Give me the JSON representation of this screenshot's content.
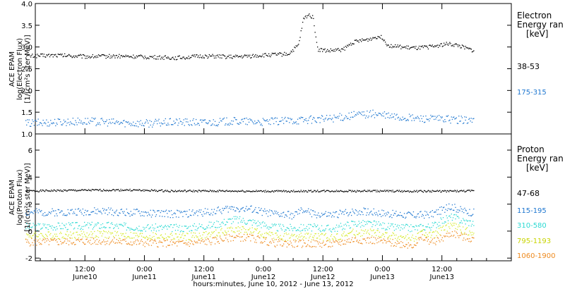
{
  "chart_data": {
    "type": "scatter",
    "xlabel": "hours:minutes, June 10, 2012 - June 13, 2012",
    "x_ticks": [
      {
        "time": "12:00",
        "day": "June10"
      },
      {
        "time": "0:00",
        "day": "June11"
      },
      {
        "time": "12:00",
        "day": "June11"
      },
      {
        "time": "0:00",
        "day": "June12"
      },
      {
        "time": "12:00",
        "day": "June12"
      },
      {
        "time": "0:00",
        "day": "June13"
      },
      {
        "time": "12:00",
        "day": "June13"
      }
    ],
    "panels": [
      {
        "name": "electron",
        "ylabel_lines": [
          "ACE EPAM",
          "log(Electron Flux)",
          "[1/(cm²s ster MeV)]"
        ],
        "ylim": [
          1.0,
          4.0
        ],
        "yticks": [
          "1.0",
          "1.5",
          "2.0",
          "2.5",
          "3.0",
          "3.5",
          "4.0"
        ],
        "legend_title": [
          "Electron",
          "Energy ran",
          "[keV]"
        ],
        "series": [
          {
            "name": "38-53",
            "color": "#000000",
            "points": [
              [
                0,
                2.8
              ],
              [
                6,
                2.82
              ],
              [
                12,
                2.79
              ],
              [
                18,
                2.8
              ],
              [
                24,
                2.78
              ],
              [
                30,
                2.76
              ],
              [
                36,
                2.8
              ],
              [
                42,
                2.78
              ],
              [
                48,
                2.82
              ],
              [
                53,
                2.85
              ],
              [
                55,
                3.05
              ],
              [
                56,
                3.65
              ],
              [
                57,
                3.75
              ],
              [
                58,
                3.7
              ],
              [
                58.5,
                3.2
              ],
              [
                59,
                2.95
              ],
              [
                61,
                2.92
              ],
              [
                64,
                2.95
              ],
              [
                66,
                3.12
              ],
              [
                69,
                3.18
              ],
              [
                71,
                3.25
              ],
              [
                72,
                3.22
              ],
              [
                73,
                3.05
              ],
              [
                76,
                3.0
              ],
              [
                79,
                2.98
              ],
              [
                82,
                3.02
              ],
              [
                85,
                3.08
              ],
              [
                87,
                3.05
              ],
              [
                89,
                2.97
              ],
              [
                90.5,
                2.92
              ]
            ]
          },
          {
            "name": "175-315",
            "color": "#1f77d0",
            "points": [
              [
                0,
                1.25
              ],
              [
                6,
                1.28
              ],
              [
                12,
                1.3
              ],
              [
                18,
                1.27
              ],
              [
                24,
                1.25
              ],
              [
                30,
                1.28
              ],
              [
                36,
                1.27
              ],
              [
                42,
                1.3
              ],
              [
                48,
                1.28
              ],
              [
                54,
                1.32
              ],
              [
                60,
                1.35
              ],
              [
                64,
                1.4
              ],
              [
                67,
                1.45
              ],
              [
                70,
                1.47
              ],
              [
                73,
                1.42
              ],
              [
                76,
                1.38
              ],
              [
                80,
                1.36
              ],
              [
                84,
                1.35
              ],
              [
                88,
                1.33
              ],
              [
                90.5,
                1.32
              ]
            ]
          }
        ]
      },
      {
        "name": "proton",
        "ylabel_lines": [
          "ACE EPAM",
          "log(Proton Flux)",
          "[1/(cm²s ster MeV)]"
        ],
        "ylim": [
          -2.2,
          7.2
        ],
        "yticks": [
          "-2",
          "0",
          "2",
          "4",
          "6"
        ],
        "legend_title": [
          "Proton",
          "Energy ran",
          "[keV]"
        ],
        "series": [
          {
            "name": "47-68",
            "color": "#000000",
            "points": [
              [
                0,
                3.0
              ],
              [
                10,
                3.05
              ],
              [
                20,
                3.08
              ],
              [
                30,
                3.0
              ],
              [
                40,
                3.0
              ],
              [
                50,
                2.98
              ],
              [
                60,
                3.0
              ],
              [
                70,
                3.0
              ],
              [
                80,
                2.98
              ],
              [
                90.5,
                3.0
              ]
            ]
          },
          {
            "name": "115-195",
            "color": "#1f77d0",
            "points": [
              [
                0,
                1.4
              ],
              [
                8,
                1.45
              ],
              [
                16,
                1.5
              ],
              [
                24,
                1.35
              ],
              [
                32,
                1.3
              ],
              [
                38,
                1.5
              ],
              [
                42,
                1.75
              ],
              [
                46,
                1.6
              ],
              [
                50,
                1.3
              ],
              [
                54,
                1.2
              ],
              [
                56,
                1.6
              ],
              [
                58,
                1.3
              ],
              [
                62,
                1.2
              ],
              [
                66,
                1.5
              ],
              [
                70,
                1.45
              ],
              [
                74,
                1.3
              ],
              [
                78,
                1.2
              ],
              [
                82,
                1.3
              ],
              [
                84,
                1.6
              ],
              [
                86,
                1.85
              ],
              [
                88,
                1.55
              ],
              [
                90.5,
                1.4
              ]
            ]
          },
          {
            "name": "310-580",
            "color": "#2bd9d2",
            "points": [
              [
                0,
                0.35
              ],
              [
                8,
                0.4
              ],
              [
                16,
                0.45
              ],
              [
                24,
                0.3
              ],
              [
                32,
                0.25
              ],
              [
                38,
                0.5
              ],
              [
                42,
                0.9
              ],
              [
                46,
                0.7
              ],
              [
                50,
                0.3
              ],
              [
                54,
                0.25
              ],
              [
                58,
                0.3
              ],
              [
                62,
                0.2
              ],
              [
                66,
                0.6
              ],
              [
                70,
                0.55
              ],
              [
                74,
                0.3
              ],
              [
                78,
                0.25
              ],
              [
                82,
                0.4
              ],
              [
                84,
                0.8
              ],
              [
                86,
                1.1
              ],
              [
                88,
                0.8
              ],
              [
                90.5,
                0.6
              ]
            ]
          },
          {
            "name": "795-1193",
            "color": "#d6ea2a",
            "points": [
              [
                0,
                -0.3
              ],
              [
                8,
                -0.25
              ],
              [
                16,
                -0.2
              ],
              [
                24,
                -0.35
              ],
              [
                32,
                -0.4
              ],
              [
                38,
                -0.2
              ],
              [
                42,
                0.2
              ],
              [
                46,
                0.0
              ],
              [
                50,
                -0.35
              ],
              [
                54,
                -0.4
              ],
              [
                58,
                -0.35
              ],
              [
                62,
                -0.45
              ],
              [
                66,
                -0.1
              ],
              [
                70,
                -0.1
              ],
              [
                74,
                -0.35
              ],
              [
                78,
                -0.5
              ],
              [
                80,
                -0.1
              ],
              [
                82,
                -0.3
              ],
              [
                84,
                0.1
              ],
              [
                86,
                0.5
              ],
              [
                88,
                0.1
              ],
              [
                90.5,
                -0.1
              ]
            ]
          },
          {
            "name": "1060-1900",
            "color": "#ee8a1e",
            "points": [
              [
                0,
                -0.8
              ],
              [
                8,
                -0.75
              ],
              [
                16,
                -0.7
              ],
              [
                24,
                -0.85
              ],
              [
                32,
                -0.9
              ],
              [
                38,
                -0.7
              ],
              [
                42,
                -0.4
              ],
              [
                46,
                -0.5
              ],
              [
                50,
                -0.85
              ],
              [
                54,
                -0.9
              ],
              [
                58,
                -0.9
              ],
              [
                62,
                -0.95
              ],
              [
                66,
                -0.6
              ],
              [
                70,
                -0.65
              ],
              [
                74,
                -0.85
              ],
              [
                78,
                -1.0
              ],
              [
                80,
                -0.5
              ],
              [
                82,
                -0.8
              ],
              [
                84,
                -0.5
              ],
              [
                86,
                -0.1
              ],
              [
                88,
                -0.4
              ],
              [
                90.5,
                -0.6
              ]
            ]
          }
        ]
      }
    ]
  }
}
